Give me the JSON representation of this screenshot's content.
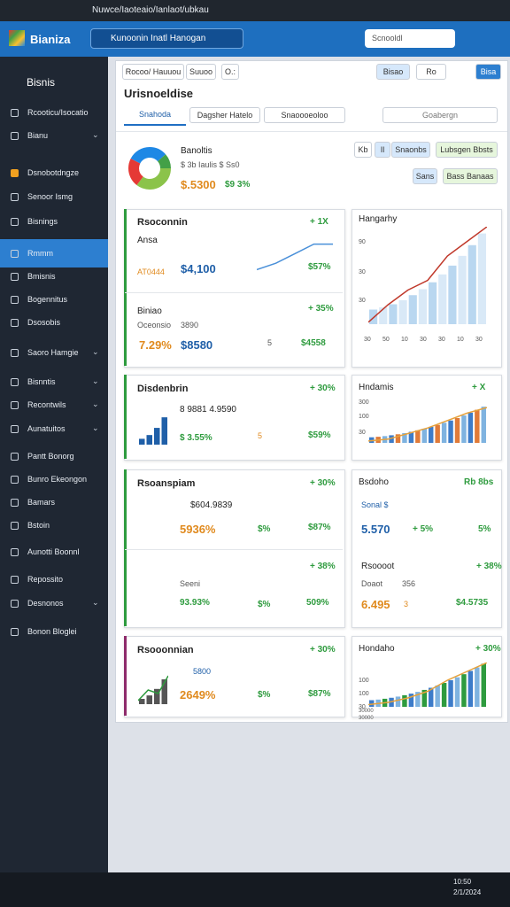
{
  "browser": {
    "url": "Nuwce/Iaoteaio/Ianlaot/ubkau"
  },
  "header": {
    "brand": "Bianiza",
    "search": "Kunoonin Inatl Hanogan",
    "search_right": "Scnooldl"
  },
  "sidebar": {
    "title": "Bisnis",
    "items": [
      "Rcooticu/Isocatio",
      "Bianu",
      "Dsnobotdngze",
      "Senoor Ismg",
      "Bisnings",
      "Rmmm",
      "Bmisnis",
      "Bogennitus",
      "Dsosobis",
      "Saoro Hamgie",
      "Bisnntis",
      "Recontwils",
      "Aunatuitos",
      "Pantt Bonorg",
      "Bunro Ekeongon",
      "Bamars",
      "Bstoin",
      "Aunotti Boonnl",
      "Repossito",
      "Desnonos",
      "Bonon Bloglei"
    ]
  },
  "toolbar": {
    "left": [
      "Rocoo/ Hauuou",
      "Suuoo",
      "O.:"
    ],
    "right": [
      "Bisao",
      "Ro",
      "Bisa"
    ]
  },
  "page_title": "Urisnoeldise",
  "tabs": [
    "Snahoda",
    "Dagsher Hatelo",
    "Snaoooeoloo"
  ],
  "filter": "Goabergn",
  "summary": {
    "name": "Banoltis",
    "line": "$ 3b Iaulis $ Ss0",
    "value": "$.5300",
    "change": "$9 3%"
  },
  "actions": [
    "Kb",
    "Il",
    "Snaonbs",
    "Lubsgen Bbsts",
    "Sans",
    "Bass Banaas"
  ],
  "cards": {
    "c1": {
      "title": "Rsoconnin",
      "badge": "+ 1X",
      "sub": "Ansa",
      "label": "AT0444",
      "value": "$4,100",
      "change": "$57%",
      "title2": "Biniao",
      "badge2": "+ 35%",
      "sub2": "Oceonsio",
      "num2": "3890",
      "v1": "7.29%",
      "v2": "$8580",
      "v3": "5",
      "v4": "$4558"
    },
    "c2": {
      "title": "Disdenbrin",
      "badge": "+ 30%",
      "line": "8 9881 4.9590",
      "sub": "$ 3.55%",
      "v1": "5",
      "v2": "$59%"
    },
    "c3": {
      "title": "Rsoanspiam",
      "badge": "+ 30%",
      "line": "$604.9839",
      "v1": "5936%",
      "v2": "$%",
      "v3": "$87%",
      "badge2": "+ 38%",
      "sub2": "Seeni",
      "v4": "93.93%",
      "v5": "$%",
      "v6": "509%"
    },
    "c4": {
      "title": "Rsooonnian",
      "badge": "+ 30%",
      "line": "5800",
      "v1": "2649%",
      "v2": "$%",
      "v3": "$87%"
    },
    "r1": {
      "title": "Hangarhy",
      "yticks": [
        "90",
        "30",
        "30"
      ],
      "xticks": [
        "30",
        "50",
        "10",
        "30",
        "30",
        "10",
        "30"
      ]
    },
    "r2": {
      "title": "Hndamis",
      "badge": "+ X",
      "yticks": [
        "300",
        "100",
        "30"
      ]
    },
    "r3": {
      "title": "Bsdoho",
      "badge": "Rb 8bs",
      "line": "Sonal $",
      "v1": "5.570",
      "v2": "+ 5%",
      "v3": "5%",
      "title2": "Rsoooot",
      "badge2": "+ 38%",
      "sub2": "Doaot",
      "num2": "356",
      "v4": "6.495",
      "v5": "3",
      "v6": "$4.5735"
    },
    "r4": {
      "title": "Hondaho",
      "badge": "+ 30%",
      "yticks": [
        "100",
        "100",
        "30"
      ],
      "xticks": [
        "30000",
        "30000"
      ]
    }
  },
  "taskbar": {
    "time": "10:50",
    "date": "2/1/2024"
  }
}
